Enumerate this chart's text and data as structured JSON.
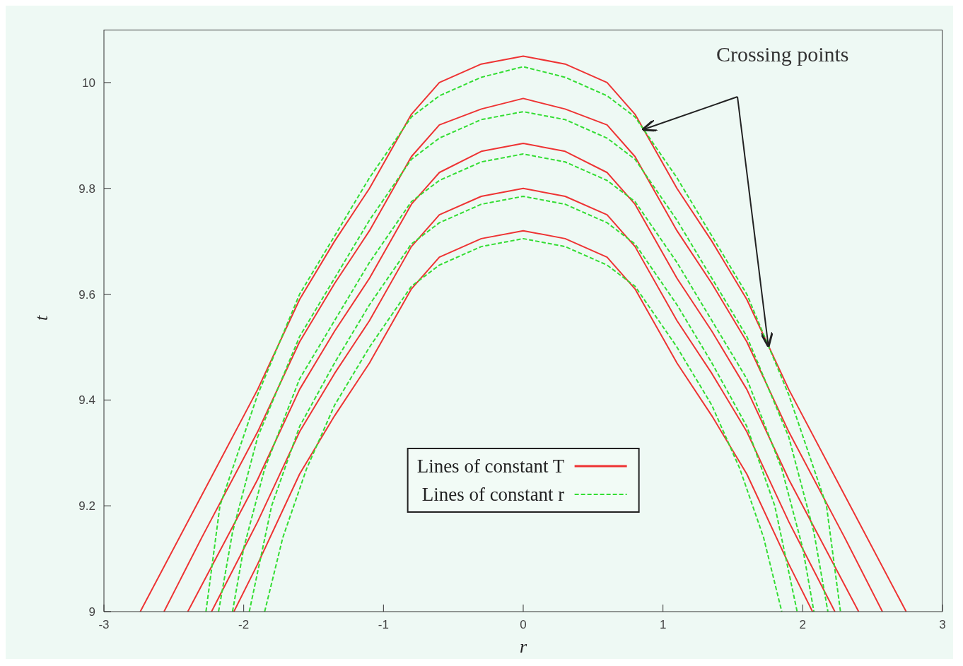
{
  "chart_data": {
    "type": "line",
    "xlabel": "r",
    "ylabel": "t",
    "xlim": [
      -3,
      3
    ],
    "xticks": [
      -3,
      -2,
      -1,
      0,
      1,
      2,
      3
    ],
    "ylim": [
      9,
      10.1
    ],
    "yticks": [
      9,
      9.2,
      9.4,
      9.6,
      9.8,
      10
    ],
    "grid": false,
    "legend": "bottom",
    "marker": "none",
    "annotations": [
      "Crossing points"
    ],
    "series": [
      {
        "name": "Lines of constant T",
        "color": "#ee3333",
        "line_style": "solid",
        "x": [
          -2.74,
          -2.3,
          -1.9,
          -1.6,
          -1.35,
          -1.1,
          -0.8,
          -0.6,
          -0.3,
          0,
          0.3,
          0.6,
          0.8,
          1.1,
          1.35,
          1.6,
          1.9,
          2.3,
          2.74
        ],
        "values": [
          9,
          9.22,
          9.42,
          9.59,
          9.7,
          9.8,
          9.94,
          10,
          10.035,
          10.05,
          10.035,
          10,
          9.94,
          9.8,
          9.7,
          9.59,
          9.42,
          9.22,
          9
        ]
      },
      {
        "color": "#ee3333",
        "line_style": "solid",
        "x": [
          -2.57,
          -2.3,
          -1.9,
          -1.6,
          -1.35,
          -1.1,
          -0.8,
          -0.6,
          -0.3,
          0,
          0.3,
          0.6,
          0.8,
          1.1,
          1.35,
          1.6,
          1.9,
          2.3,
          2.57
        ],
        "values": [
          9,
          9.14,
          9.34,
          9.51,
          9.62,
          9.72,
          9.86,
          9.92,
          9.95,
          9.97,
          9.95,
          9.92,
          9.86,
          9.72,
          9.62,
          9.51,
          9.34,
          9.14,
          9
        ]
      },
      {
        "color": "#ee3333",
        "line_style": "solid",
        "x": [
          -2.4,
          -2.3,
          -1.9,
          -1.6,
          -1.35,
          -1.1,
          -0.8,
          -0.6,
          -0.3,
          0,
          0.3,
          0.6,
          0.8,
          1.1,
          1.35,
          1.6,
          1.9,
          2.3,
          2.4
        ],
        "values": [
          9,
          9.05,
          9.25,
          9.42,
          9.53,
          9.63,
          9.77,
          9.83,
          9.87,
          9.885,
          9.87,
          9.83,
          9.77,
          9.63,
          9.53,
          9.42,
          9.25,
          9.05,
          9
        ]
      },
      {
        "color": "#ee3333",
        "line_style": "solid",
        "x": [
          -2.23,
          -1.9,
          -1.6,
          -1.35,
          -1.1,
          -0.8,
          -0.6,
          -0.3,
          0,
          0.3,
          0.6,
          0.8,
          1.1,
          1.35,
          1.6,
          1.9,
          2.23
        ],
        "values": [
          9,
          9.17,
          9.34,
          9.45,
          9.55,
          9.69,
          9.75,
          9.785,
          9.8,
          9.785,
          9.75,
          9.69,
          9.55,
          9.45,
          9.34,
          9.17,
          9
        ]
      },
      {
        "color": "#ee3333",
        "line_style": "solid",
        "x": [
          -2.07,
          -1.9,
          -1.6,
          -1.35,
          -1.1,
          -0.8,
          -0.6,
          -0.3,
          0,
          0.3,
          0.6,
          0.8,
          1.1,
          1.35,
          1.6,
          1.9,
          2.07
        ],
        "values": [
          9,
          9.09,
          9.26,
          9.37,
          9.47,
          9.61,
          9.67,
          9.705,
          9.72,
          9.705,
          9.67,
          9.61,
          9.47,
          9.37,
          9.26,
          9.09,
          9
        ]
      },
      {
        "name": "Lines of constant r",
        "color": "#33dd33",
        "line_style": "dashed",
        "x": [
          -2.27,
          -2.17,
          -1.9,
          -1.6,
          -1.35,
          -1.1,
          -0.8,
          -0.6,
          -0.3,
          0,
          0.3,
          0.6,
          0.8,
          1.1,
          1.35,
          1.6,
          1.9,
          2.17,
          2.27
        ],
        "values": [
          9,
          9.2,
          9.41,
          9.6,
          9.71,
          9.82,
          9.935,
          9.975,
          10.01,
          10.03,
          10.01,
          9.975,
          9.935,
          9.82,
          9.71,
          9.6,
          9.41,
          9.2,
          9
        ]
      },
      {
        "color": "#33dd33",
        "line_style": "dashed",
        "x": [
          -2.18,
          -2.08,
          -1.9,
          -1.6,
          -1.35,
          -1.1,
          -0.8,
          -0.6,
          -0.3,
          0,
          0.3,
          0.6,
          0.8,
          1.1,
          1.35,
          1.6,
          1.9,
          2.08,
          2.18
        ],
        "values": [
          9,
          9.15,
          9.33,
          9.52,
          9.63,
          9.74,
          9.855,
          9.895,
          9.93,
          9.945,
          9.93,
          9.895,
          9.855,
          9.74,
          9.63,
          9.52,
          9.33,
          9.15,
          9
        ]
      },
      {
        "color": "#33dd33",
        "line_style": "dashed",
        "x": [
          -2.08,
          -2,
          -1.85,
          -1.6,
          -1.35,
          -1.1,
          -0.8,
          -0.6,
          -0.3,
          0,
          0.3,
          0.6,
          0.8,
          1.1,
          1.35,
          1.6,
          1.85,
          2,
          2.08
        ],
        "values": [
          9,
          9.12,
          9.27,
          9.44,
          9.55,
          9.66,
          9.775,
          9.815,
          9.85,
          9.865,
          9.85,
          9.815,
          9.775,
          9.66,
          9.55,
          9.44,
          9.27,
          9.12,
          9
        ]
      },
      {
        "color": "#33dd33",
        "line_style": "dashed",
        "x": [
          -1.96,
          -1.8,
          -1.6,
          -1.35,
          -1.1,
          -0.8,
          -0.6,
          -0.3,
          0,
          0.3,
          0.6,
          0.8,
          1.1,
          1.35,
          1.6,
          1.8,
          1.96
        ],
        "values": [
          9,
          9.2,
          9.35,
          9.47,
          9.58,
          9.695,
          9.735,
          9.77,
          9.785,
          9.77,
          9.735,
          9.695,
          9.58,
          9.47,
          9.35,
          9.2,
          9
        ]
      },
      {
        "color": "#33dd33",
        "line_style": "dashed",
        "x": [
          -1.85,
          -1.72,
          -1.55,
          -1.35,
          -1.1,
          -0.8,
          -0.6,
          -0.3,
          0,
          0.3,
          0.6,
          0.8,
          1.1,
          1.35,
          1.55,
          1.72,
          1.85
        ],
        "values": [
          9,
          9.14,
          9.27,
          9.39,
          9.5,
          9.615,
          9.655,
          9.69,
          9.705,
          9.69,
          9.655,
          9.615,
          9.5,
          9.39,
          9.27,
          9.14,
          9
        ]
      }
    ]
  }
}
